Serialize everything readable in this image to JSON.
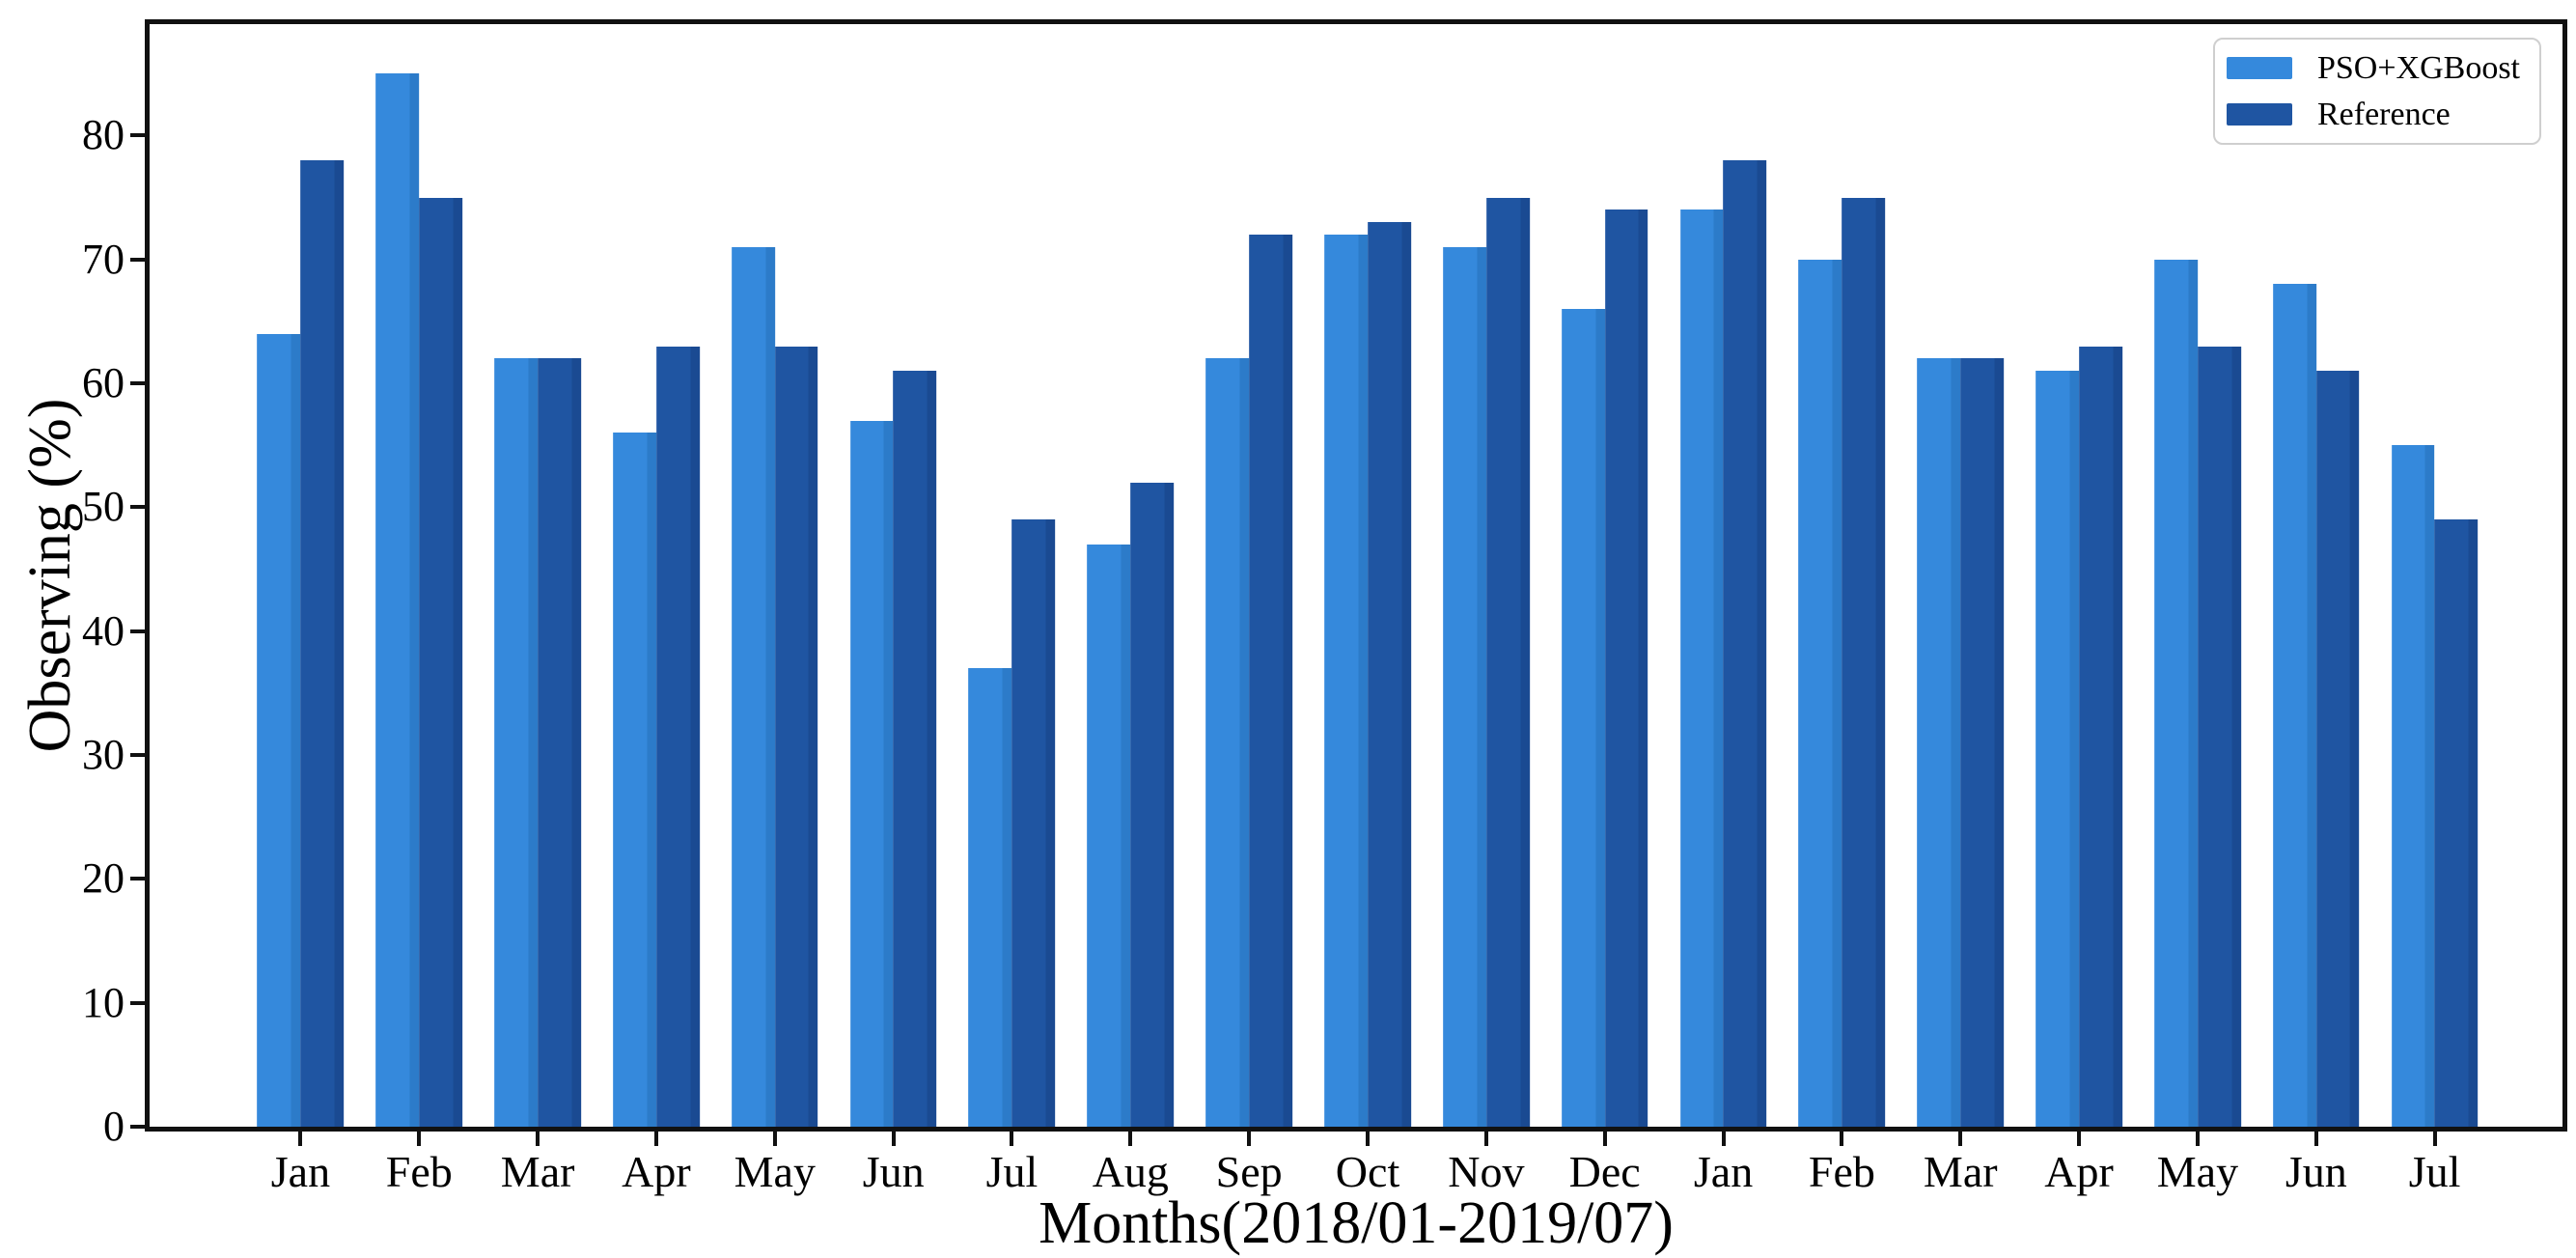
{
  "chart_data": {
    "type": "bar",
    "title": "",
    "xlabel": "Months(2018/01-2019/07)",
    "ylabel": "Observing (%)",
    "categories": [
      "Jan",
      "Feb",
      "Mar",
      "Apr",
      "May",
      "Jun",
      "Jul",
      "Aug",
      "Sep",
      "Oct",
      "Nov",
      "Dec",
      "Jan",
      "Feb",
      "Mar",
      "Apr",
      "May",
      "Jun",
      "Jul"
    ],
    "series": [
      {
        "name": "PSO+XGBoost",
        "color": "#3589DC",
        "values": [
          64,
          85,
          62,
          56,
          71,
          57,
          37,
          47,
          62,
          72,
          71,
          66,
          74,
          70,
          62,
          61,
          70,
          68,
          55
        ]
      },
      {
        "name": "Reference",
        "color": "#1F55A2",
        "values": [
          78,
          75,
          62,
          63,
          63,
          61,
          49,
          52,
          72,
          73,
          75,
          74,
          78,
          75,
          62,
          63,
          63,
          61,
          49
        ]
      }
    ],
    "yticks": [
      0,
      10,
      20,
      30,
      40,
      50,
      60,
      70,
      80
    ],
    "ylim": [
      0,
      89
    ],
    "grid": false,
    "legend_position": "top-right",
    "axis_color": "#111111",
    "background_color": "#ffffff"
  }
}
